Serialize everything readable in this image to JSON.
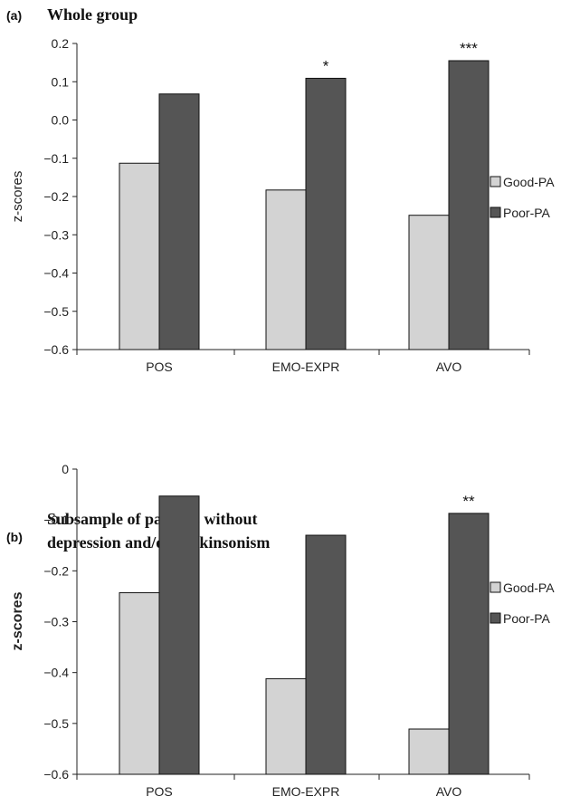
{
  "chart_data": [
    {
      "type": "bar",
      "panel_label": "(a)",
      "title": "Whole group",
      "title_lines": [
        "Whole group"
      ],
      "ylabel": "z-scores",
      "ylim": [
        -0.6,
        0.2
      ],
      "yticks": [
        0.2,
        0.1,
        0.0,
        -0.1,
        -0.2,
        -0.3,
        -0.4,
        -0.5,
        -0.6
      ],
      "ytick_labels": [
        "0.2",
        "0.1",
        "0.0",
        "-0.1",
        "-0.2",
        "-0.3",
        "-0.4",
        "-0.5",
        "-0.6"
      ],
      "categories": [
        "POS",
        "EMO-EXPR",
        "AVO"
      ],
      "series": [
        {
          "name": "Good-PA",
          "color": "#d3d3d3",
          "values": [
            -0.113,
            -0.183,
            -0.249
          ]
        },
        {
          "name": "Poor-PA",
          "color": "#555555",
          "values": [
            0.068,
            0.109,
            0.155
          ]
        }
      ],
      "significance": [
        "",
        "*",
        "***"
      ],
      "legend_position": "right"
    },
    {
      "type": "bar",
      "panel_label": "(b)",
      "title": "Subsample of patients without depression and/or parkinsonism",
      "title_lines": [
        "Subsample of patients without",
        "depression and/or parkinsonism"
      ],
      "ylabel": "z-scores",
      "ylim": [
        -0.6,
        0
      ],
      "yticks": [
        0,
        -0.1,
        -0.2,
        -0.3,
        -0.4,
        -0.5,
        -0.6
      ],
      "ytick_labels": [
        "0",
        "-0.1",
        "-0.2",
        "-0.3",
        "-0.4",
        "-0.5",
        "-0.6"
      ],
      "categories": [
        "POS",
        "EMO-EXPR",
        "AVO"
      ],
      "series": [
        {
          "name": "Good-PA",
          "color": "#d3d3d3",
          "values": [
            -0.243,
            -0.412,
            -0.511
          ]
        },
        {
          "name": "Poor-PA",
          "color": "#555555",
          "values": [
            -0.053,
            -0.13,
            -0.087
          ]
        }
      ],
      "significance": [
        "",
        "",
        "**"
      ],
      "legend_position": "right"
    }
  ]
}
